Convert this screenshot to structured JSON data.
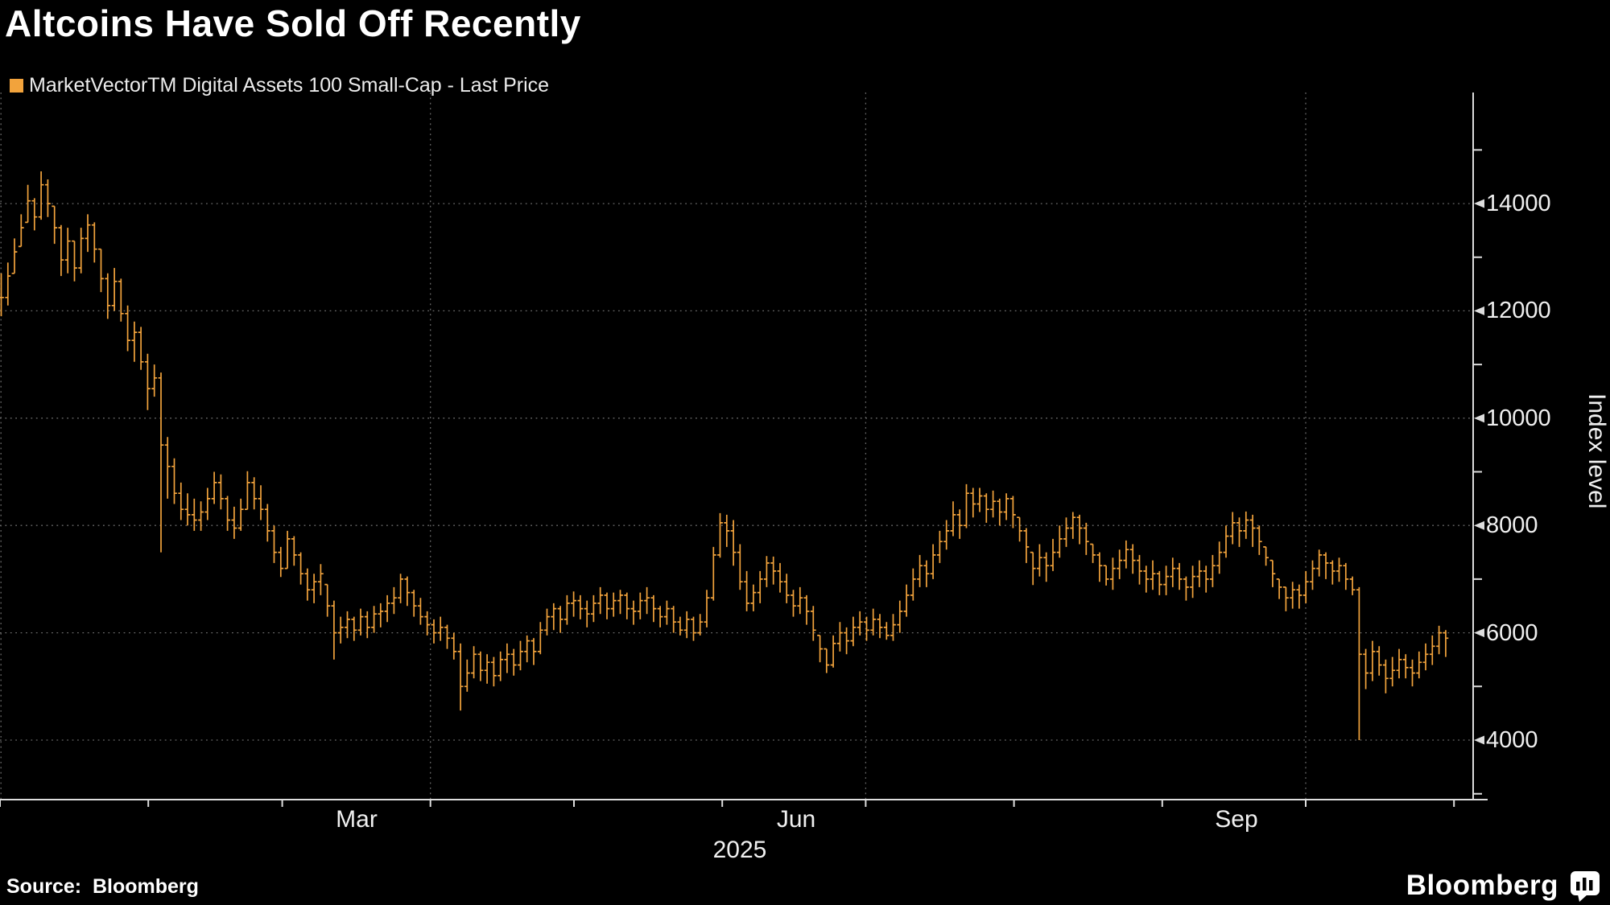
{
  "header": {
    "title": "Altcoins Have Sold Off Recently"
  },
  "legend": {
    "label": "MarketVectorTM Digital Assets 100 Small-Cap - Last Price"
  },
  "y_axis": {
    "title": "Index level"
  },
  "footer": {
    "source": "Source:  Bloomberg",
    "brand": "Bloomberg"
  },
  "colors": {
    "bar": "#f2a33c",
    "background": "#000000",
    "grid": "#6a6a6a",
    "axis": "#dddddd",
    "text": "#f0f0f0"
  },
  "chart_data": {
    "type": "bar",
    "subtype": "daily-HLC-price-bars",
    "title": "Altcoins Have Sold Off Recently",
    "series_name": "MarketVectorTM Digital Assets 100 Small-Cap - Last Price",
    "ylabel": "Index level",
    "ylim": [
      2890,
      16070
    ],
    "y_grid_values": [
      4000,
      6000,
      8000,
      10000,
      12000,
      14000
    ],
    "y_minor_ticks": [
      3000,
      5000,
      7000,
      9000,
      11000,
      13000,
      15000
    ],
    "grid": true,
    "legend_position": "top-left",
    "x_axis": {
      "year_label": "2025",
      "axis_days": 308,
      "data_span_days": 302,
      "month_tick_days": [
        0,
        31,
        59,
        90,
        120,
        151,
        181,
        212,
        243,
        273,
        304
      ],
      "quarter_grid_days": [
        0,
        90,
        181,
        273
      ],
      "month_labels": [
        {
          "text": "Mar",
          "day": 74.5
        },
        {
          "text": "Jun",
          "day": 166.5
        },
        {
          "text": "Sep",
          "day": 258.5
        }
      ]
    },
    "bars_hlc": [
      [
        12700,
        11900,
        12250
      ],
      [
        12900,
        12100,
        12650
      ],
      [
        13350,
        12700,
        13100
      ],
      [
        13800,
        13200,
        13550
      ],
      [
        14350,
        13650,
        14050
      ],
      [
        14100,
        13500,
        13750
      ],
      [
        14600,
        13700,
        14350
      ],
      [
        14450,
        13750,
        14000
      ],
      [
        13950,
        13250,
        13550
      ],
      [
        13600,
        12650,
        12950
      ],
      [
        13550,
        12700,
        13300
      ],
      [
        13300,
        12550,
        12800
      ],
      [
        13550,
        12700,
        13350
      ],
      [
        13800,
        13100,
        13600
      ],
      [
        13650,
        12900,
        13150
      ],
      [
        13150,
        12350,
        12600
      ],
      [
        12700,
        11850,
        12100
      ],
      [
        12800,
        12000,
        12550
      ],
      [
        12600,
        11800,
        11950
      ],
      [
        12100,
        11250,
        11450
      ],
      [
        11800,
        11050,
        11600
      ],
      [
        11700,
        10900,
        11050
      ],
      [
        11200,
        10150,
        10550
      ],
      [
        11000,
        10400,
        10750
      ],
      [
        10850,
        7500,
        9500
      ],
      [
        9650,
        8500,
        9100
      ],
      [
        9250,
        8400,
        8600
      ],
      [
        8800,
        8100,
        8300
      ],
      [
        8600,
        8000,
        8200
      ],
      [
        8500,
        7900,
        8100
      ],
      [
        8450,
        7900,
        8250
      ],
      [
        8700,
        8100,
        8500
      ],
      [
        9000,
        8400,
        8800
      ],
      [
        8950,
        8300,
        8500
      ],
      [
        8550,
        7900,
        8100
      ],
      [
        8350,
        7750,
        7950
      ],
      [
        8500,
        7900,
        8300
      ],
      [
        9010,
        8300,
        8800
      ],
      [
        8900,
        8300,
        8500
      ],
      [
        8750,
        8100,
        8300
      ],
      [
        8400,
        7700,
        7900
      ],
      [
        8000,
        7300,
        7500
      ],
      [
        7600,
        7040,
        7200
      ],
      [
        7900,
        7200,
        7750
      ],
      [
        7800,
        7250,
        7450
      ],
      [
        7500,
        6900,
        7100
      ],
      [
        7200,
        6600,
        6800
      ],
      [
        7100,
        6550,
        6950
      ],
      [
        7280,
        6700,
        7100
      ],
      [
        6900,
        6300,
        6500
      ],
      [
        6600,
        5500,
        6000
      ],
      [
        6300,
        5800,
        6100
      ],
      [
        6400,
        5900,
        6250
      ],
      [
        6300,
        5850,
        6050
      ],
      [
        6450,
        5950,
        6300
      ],
      [
        6400,
        5900,
        6100
      ],
      [
        6500,
        6000,
        6350
      ],
      [
        6550,
        6100,
        6400
      ],
      [
        6700,
        6200,
        6550
      ],
      [
        6850,
        6350,
        6650
      ],
      [
        7100,
        6550,
        7000
      ],
      [
        7050,
        6500,
        6750
      ],
      [
        6800,
        6300,
        6500
      ],
      [
        6650,
        6150,
        6300
      ],
      [
        6400,
        5950,
        6150
      ],
      [
        6250,
        5800,
        6000
      ],
      [
        6300,
        5850,
        6100
      ],
      [
        6150,
        5700,
        5900
      ],
      [
        6000,
        5500,
        5650
      ],
      [
        5800,
        4550,
        5000
      ],
      [
        5500,
        4900,
        5250
      ],
      [
        5750,
        5150,
        5600
      ],
      [
        5650,
        5100,
        5300
      ],
      [
        5600,
        5050,
        5450
      ],
      [
        5550,
        5000,
        5200
      ],
      [
        5650,
        5100,
        5500
      ],
      [
        5800,
        5250,
        5600
      ],
      [
        5700,
        5200,
        5400
      ],
      [
        5850,
        5300,
        5650
      ],
      [
        5950,
        5450,
        5850
      ],
      [
        5900,
        5400,
        5650
      ],
      [
        6200,
        5600,
        6050
      ],
      [
        6450,
        5950,
        6300
      ],
      [
        6550,
        6050,
        6450
      ],
      [
        6500,
        6000,
        6250
      ],
      [
        6700,
        6150,
        6550
      ],
      [
        6770,
        6300,
        6600
      ],
      [
        6700,
        6250,
        6450
      ],
      [
        6600,
        6100,
        6350
      ],
      [
        6700,
        6200,
        6550
      ],
      [
        6850,
        6350,
        6700
      ],
      [
        6750,
        6250,
        6450
      ],
      [
        6750,
        6300,
        6600
      ],
      [
        6800,
        6350,
        6700
      ],
      [
        6750,
        6250,
        6450
      ],
      [
        6600,
        6150,
        6400
      ],
      [
        6750,
        6250,
        6600
      ],
      [
        6850,
        6350,
        6650
      ],
      [
        6700,
        6200,
        6450
      ],
      [
        6500,
        6100,
        6300
      ],
      [
        6600,
        6150,
        6450
      ],
      [
        6500,
        6000,
        6200
      ],
      [
        6300,
        5950,
        6050
      ],
      [
        6400,
        5900,
        6250
      ],
      [
        6300,
        5850,
        6000
      ],
      [
        6350,
        5950,
        6200
      ],
      [
        6800,
        6100,
        6650
      ],
      [
        7600,
        6600,
        7450
      ],
      [
        8230,
        7400,
        8050
      ],
      [
        8200,
        7600,
        7900
      ],
      [
        8100,
        7250,
        7500
      ],
      [
        7650,
        6800,
        6950
      ],
      [
        7150,
        6400,
        6550
      ],
      [
        6900,
        6400,
        6750
      ],
      [
        7150,
        6550,
        7000
      ],
      [
        7430,
        6850,
        7300
      ],
      [
        7420,
        6900,
        7150
      ],
      [
        7300,
        6750,
        6950
      ],
      [
        7100,
        6550,
        6700
      ],
      [
        6800,
        6300,
        6500
      ],
      [
        6850,
        6350,
        6650
      ],
      [
        6700,
        6150,
        6400
      ],
      [
        6500,
        5850,
        6050
      ],
      [
        5950,
        5450,
        5700
      ],
      [
        5700,
        5250,
        5400
      ],
      [
        5950,
        5350,
        5800
      ],
      [
        6200,
        5650,
        6000
      ],
      [
        6100,
        5600,
        5850
      ],
      [
        6300,
        5750,
        6100
      ],
      [
        6400,
        5950,
        6200
      ],
      [
        6300,
        5850,
        6050
      ],
      [
        6450,
        5950,
        6250
      ],
      [
        6350,
        5900,
        6100
      ],
      [
        6200,
        5870,
        5950
      ],
      [
        6350,
        5850,
        6150
      ],
      [
        6600,
        6000,
        6400
      ],
      [
        6900,
        6300,
        6700
      ],
      [
        7200,
        6600,
        7000
      ],
      [
        7450,
        6850,
        7250
      ],
      [
        7350,
        6850,
        7100
      ],
      [
        7650,
        7000,
        7450
      ],
      [
        7900,
        7300,
        7700
      ],
      [
        8100,
        7550,
        7900
      ],
      [
        8450,
        7800,
        8200
      ],
      [
        8300,
        7750,
        8000
      ],
      [
        8770,
        7950,
        8600
      ],
      [
        8700,
        8150,
        8400
      ],
      [
        8700,
        8250,
        8550
      ],
      [
        8600,
        8050,
        8300
      ],
      [
        8650,
        8150,
        8450
      ],
      [
        8500,
        8000,
        8250
      ],
      [
        8600,
        8100,
        8500
      ],
      [
        8550,
        7950,
        8200
      ],
      [
        8150,
        7700,
        7900
      ],
      [
        7950,
        7300,
        7600
      ],
      [
        7500,
        6890,
        7200
      ],
      [
        7650,
        7050,
        7400
      ],
      [
        7500,
        6950,
        7250
      ],
      [
        7750,
        7150,
        7500
      ],
      [
        8000,
        7400,
        7750
      ],
      [
        8150,
        7600,
        7950
      ],
      [
        8250,
        7750,
        8150
      ],
      [
        8200,
        7650,
        7950
      ],
      [
        8050,
        7450,
        7700
      ],
      [
        7650,
        7300,
        7450
      ],
      [
        7500,
        6950,
        7250
      ],
      [
        7250,
        6880,
        7000
      ],
      [
        7400,
        6800,
        7200
      ],
      [
        7550,
        7000,
        7350
      ],
      [
        7720,
        7200,
        7550
      ],
      [
        7650,
        7100,
        7350
      ],
      [
        7450,
        6900,
        7150
      ],
      [
        7250,
        6750,
        7000
      ],
      [
        7350,
        6800,
        7100
      ],
      [
        7150,
        6700,
        6900
      ],
      [
        7250,
        6700,
        7050
      ],
      [
        7400,
        6850,
        7200
      ],
      [
        7300,
        6800,
        7000
      ],
      [
        7050,
        6600,
        6850
      ],
      [
        7250,
        6650,
        7050
      ],
      [
        7350,
        6850,
        7150
      ],
      [
        7250,
        6750,
        7000
      ],
      [
        7450,
        6850,
        7250
      ],
      [
        7700,
        7100,
        7500
      ],
      [
        8000,
        7400,
        7800
      ],
      [
        8250,
        7650,
        8050
      ],
      [
        8150,
        7600,
        7900
      ],
      [
        8260,
        7750,
        8100
      ],
      [
        8200,
        7600,
        7950
      ],
      [
        8000,
        7450,
        7700
      ],
      [
        7600,
        7250,
        7400
      ],
      [
        7350,
        6850,
        7100
      ],
      [
        7000,
        6630,
        6850
      ],
      [
        6850,
        6400,
        6650
      ],
      [
        6950,
        6450,
        6800
      ],
      [
        6900,
        6450,
        6700
      ],
      [
        7150,
        6550,
        6950
      ],
      [
        7350,
        6800,
        7200
      ],
      [
        7550,
        7050,
        7450
      ],
      [
        7500,
        7000,
        7300
      ],
      [
        7350,
        6900,
        7150
      ],
      [
        7400,
        6950,
        7250
      ],
      [
        7300,
        6800,
        7000
      ],
      [
        7050,
        6700,
        6800
      ],
      [
        6850,
        4000,
        5600
      ],
      [
        5700,
        4950,
        5250
      ],
      [
        5850,
        5100,
        5650
      ],
      [
        5750,
        5200,
        5400
      ],
      [
        5500,
        4870,
        5150
      ],
      [
        5550,
        5000,
        5300
      ],
      [
        5700,
        5150,
        5500
      ],
      [
        5600,
        5150,
        5350
      ],
      [
        5500,
        5000,
        5250
      ],
      [
        5650,
        5150,
        5450
      ],
      [
        5800,
        5300,
        5600
      ],
      [
        5950,
        5400,
        5750
      ],
      [
        6130,
        5600,
        6000
      ],
      [
        6050,
        5550,
        5900
      ]
    ]
  }
}
